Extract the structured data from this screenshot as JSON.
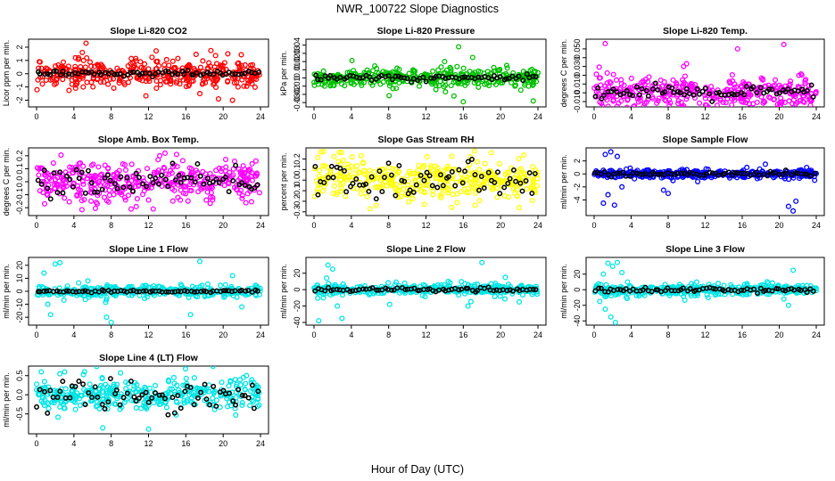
{
  "figure": {
    "title": "NWR_100722  Slope Diagnostics",
    "xlabel": "Hour of Day (UTC)"
  },
  "chart_data": [
    {
      "id": "p1",
      "type": "scatter",
      "title": "Slope Li-820 CO2",
      "ylabel": "Licor ppm per min.",
      "xlim": [
        0,
        24
      ],
      "ylim": [
        -2.3,
        2.4
      ],
      "yticks": [
        -2,
        -1,
        0,
        1,
        2
      ],
      "ytick_labels": [
        "-2",
        "-1",
        "0",
        "1",
        "2"
      ],
      "xticks": [
        0,
        4,
        8,
        12,
        16,
        20,
        24
      ],
      "color": "#ff0000",
      "spread": 0.45,
      "black_spread": 0.12,
      "outliers": [
        [
          3.8,
          -0.8
        ],
        [
          4.5,
          1.2
        ],
        [
          4.9,
          1.6
        ],
        [
          5.3,
          2.3
        ],
        [
          5.0,
          -1.0
        ],
        [
          17.5,
          -1.5
        ],
        [
          19.5,
          -1.9
        ],
        [
          21.0,
          -2.0
        ],
        [
          20.5,
          1.5
        ]
      ]
    },
    {
      "id": "p2",
      "type": "scatter",
      "title": "Slope Li-820 Pressure",
      "ylabel": "kPa per min.",
      "xlim": [
        0,
        24
      ],
      "ylim": [
        -0.032,
        0.044
      ],
      "yticks": [
        -0.03,
        -0.02,
        -0.01,
        0,
        0.01,
        0.02,
        0.03,
        0.04
      ],
      "ytick_labels": [
        "-0.03",
        "-0.02",
        "-0.01",
        "0",
        "0.01",
        "0.02",
        "0.03",
        "0.04"
      ],
      "xticks": [
        0,
        4,
        8,
        12,
        16,
        20,
        24
      ],
      "color": "#00c000",
      "spread": 0.005,
      "black_spread": 0.002,
      "outliers": [
        [
          15.5,
          0.038
        ],
        [
          16.0,
          -0.029
        ],
        [
          14.0,
          0.02
        ],
        [
          17.0,
          0.025
        ],
        [
          23.5,
          -0.028
        ],
        [
          15.0,
          -0.022
        ]
      ]
    },
    {
      "id": "p3",
      "type": "scatter",
      "title": "Slope Li-820 Temp.",
      "ylabel": "degrees C per min.",
      "xlim": [
        0,
        24
      ],
      "ylim": [
        -0.013,
        0.058
      ],
      "yticks": [
        -0.01,
        0,
        0.01,
        0.02,
        0.03,
        0.04,
        0.05
      ],
      "ytick_labels": [
        "-0.010",
        "",
        "0.010",
        "",
        "0.030",
        "",
        "0.050"
      ],
      "xticks": [
        0,
        4,
        8,
        12,
        16,
        20,
        24
      ],
      "color": "#ff00ff",
      "spread": 0.009,
      "black_spread": 0.004,
      "outliers": [
        [
          1.2,
          0.056
        ],
        [
          0.8,
          -0.012
        ],
        [
          20.5,
          0.055
        ],
        [
          15.5,
          0.05
        ],
        [
          23.5,
          -0.008
        ]
      ]
    },
    {
      "id": "p4",
      "type": "scatter",
      "title": "Slope Amb. Box Temp.",
      "ylabel": "degrees C per min.",
      "xlim": [
        0,
        24
      ],
      "ylim": [
        -0.24,
        0.24
      ],
      "yticks": [
        -0.2,
        -0.1,
        0,
        0.1,
        0.2
      ],
      "ytick_labels": [
        "-0.2",
        "-0.1",
        "0.0",
        "0.1",
        "0.2"
      ],
      "xticks": [
        0,
        4,
        8,
        12,
        16,
        20,
        24
      ],
      "color": "#ff00ff",
      "spread": 0.07,
      "black_spread": 0.05,
      "outliers": [
        [
          12.5,
          -0.21
        ],
        [
          13.2,
          0.2
        ],
        [
          15.0,
          0.21
        ],
        [
          6.5,
          -0.17
        ]
      ]
    },
    {
      "id": "p5",
      "type": "scatter",
      "title": "Slope Gas Stream RH",
      "ylabel": "percent per min.",
      "xlim": [
        0,
        24
      ],
      "ylim": [
        -0.31,
        0.28
      ],
      "yticks": [
        -0.3,
        -0.2,
        -0.1,
        0,
        0.1,
        0.2
      ],
      "ytick_labels": [
        "-0.3",
        "-0.2",
        "-0.1",
        "0.0",
        "0.1",
        "0.2"
      ],
      "xticks": [
        0,
        4,
        8,
        12,
        16,
        20,
        24
      ],
      "color": "#ffff00",
      "spread": 0.09,
      "black_spread": 0.07,
      "outliers": [
        [
          1.0,
          0.27
        ],
        [
          6.0,
          -0.27
        ],
        [
          19.0,
          0.26
        ],
        [
          22.0,
          -0.26
        ]
      ]
    },
    {
      "id": "p6",
      "type": "scatter",
      "title": "Slope Sample Flow",
      "ylabel": "ml/min per min.",
      "xlim": [
        0,
        24
      ],
      "ylim": [
        -6,
        3.6
      ],
      "yticks": [
        -4,
        -2,
        0,
        2
      ],
      "ytick_labels": [
        "-4",
        "-2",
        "0",
        "2"
      ],
      "xticks": [
        0,
        4,
        8,
        12,
        16,
        20,
        24
      ],
      "color": "#0000ff",
      "spread": 0.3,
      "black_spread": 0.15,
      "outliers": [
        [
          1.2,
          3.0
        ],
        [
          1.8,
          3.4
        ],
        [
          2.5,
          2.7
        ],
        [
          1.0,
          -4.5
        ],
        [
          1.5,
          -3.2
        ],
        [
          2.2,
          -4.8
        ],
        [
          3.0,
          -2.0
        ],
        [
          7.5,
          -2.5
        ],
        [
          8.0,
          -3.0
        ],
        [
          16.5,
          1.0
        ],
        [
          21.0,
          -5.0
        ],
        [
          21.5,
          -5.7
        ],
        [
          21.8,
          -4.2
        ],
        [
          18.5,
          1.5
        ]
      ]
    },
    {
      "id": "p7",
      "type": "scatter",
      "title": "Slope Line 1 Flow",
      "ylabel": "ml/min per min.",
      "xlim": [
        0,
        24
      ],
      "ylim": [
        -24,
        24
      ],
      "yticks": [
        -20,
        -10,
        0,
        10,
        20
      ],
      "ytick_labels": [
        "-20",
        "-10",
        "0",
        "10",
        "20"
      ],
      "xticks": [
        0,
        4,
        8,
        12,
        16,
        20,
        24
      ],
      "color": "#00e5e5",
      "spread": 2.0,
      "black_spread": 0.4,
      "outliers": [
        [
          2.0,
          21
        ],
        [
          2.5,
          22
        ],
        [
          1.5,
          -18
        ],
        [
          0.8,
          14
        ],
        [
          1.2,
          -10
        ],
        [
          7.5,
          -20
        ],
        [
          8.0,
          -24
        ],
        [
          5.5,
          8
        ],
        [
          16.5,
          -18
        ],
        [
          17.5,
          23
        ],
        [
          21.0,
          12
        ],
        [
          22.0,
          -12
        ]
      ]
    },
    {
      "id": "p8",
      "type": "scatter",
      "title": "Slope Line 2 Flow",
      "ylabel": "ml/min per min.",
      "xlim": [
        0,
        24
      ],
      "ylim": [
        -40,
        36
      ],
      "yticks": [
        -40,
        -20,
        0,
        20
      ],
      "ytick_labels": [
        "-40",
        "-20",
        "0",
        "20"
      ],
      "xticks": [
        0,
        4,
        8,
        12,
        16,
        20,
        24
      ],
      "color": "#00e5e5",
      "spread": 3.0,
      "black_spread": 1.2,
      "outliers": [
        [
          1.5,
          30
        ],
        [
          2.0,
          25
        ],
        [
          1.0,
          -10
        ],
        [
          2.5,
          -20
        ],
        [
          3.0,
          -35
        ],
        [
          0.5,
          -38
        ],
        [
          6.0,
          -5
        ],
        [
          16.5,
          -20
        ],
        [
          18.0,
          33
        ],
        [
          20.5,
          15
        ],
        [
          22.0,
          -15
        ]
      ]
    },
    {
      "id": "p9",
      "type": "scatter",
      "title": "Slope Line 3 Flow",
      "ylabel": "ml/min per min.",
      "xlim": [
        0,
        24
      ],
      "ylim": [
        -42,
        38
      ],
      "yticks": [
        -40,
        -20,
        0,
        20
      ],
      "ytick_labels": [
        "-40",
        "-20",
        "0",
        "20"
      ],
      "xticks": [
        0,
        4,
        8,
        12,
        16,
        20,
        24
      ],
      "color": "#00e5e5",
      "spread": 3.5,
      "black_spread": 1.5,
      "outliers": [
        [
          1.0,
          20
        ],
        [
          1.5,
          34
        ],
        [
          2.0,
          30
        ],
        [
          2.5,
          35
        ],
        [
          3.0,
          22
        ],
        [
          1.2,
          -25
        ],
        [
          1.8,
          -35
        ],
        [
          2.3,
          -42
        ],
        [
          0.6,
          -15
        ],
        [
          21.5,
          25
        ],
        [
          21.0,
          -20
        ],
        [
          20.5,
          -12
        ]
      ]
    },
    {
      "id": "p10",
      "type": "scatter",
      "title": "Slope Line 4 (LT) Flow",
      "ylabel": "ml/min per min.",
      "xlim": [
        0,
        24
      ],
      "ylim": [
        -0.95,
        0.68
      ],
      "yticks": [
        -0.5,
        0,
        0.5
      ],
      "ytick_labels": [
        "-0.5",
        "0.0",
        "0.5"
      ],
      "xticks": [
        0,
        4,
        8,
        12,
        16,
        20,
        24
      ],
      "color": "#00e5e5",
      "spread": 0.18,
      "black_spread": 0.2,
      "outliers": [
        [
          12.0,
          -0.9
        ],
        [
          2.5,
          0.55
        ],
        [
          3.0,
          0.6
        ],
        [
          22.5,
          0.5
        ],
        [
          0.5,
          0.6
        ]
      ]
    }
  ]
}
